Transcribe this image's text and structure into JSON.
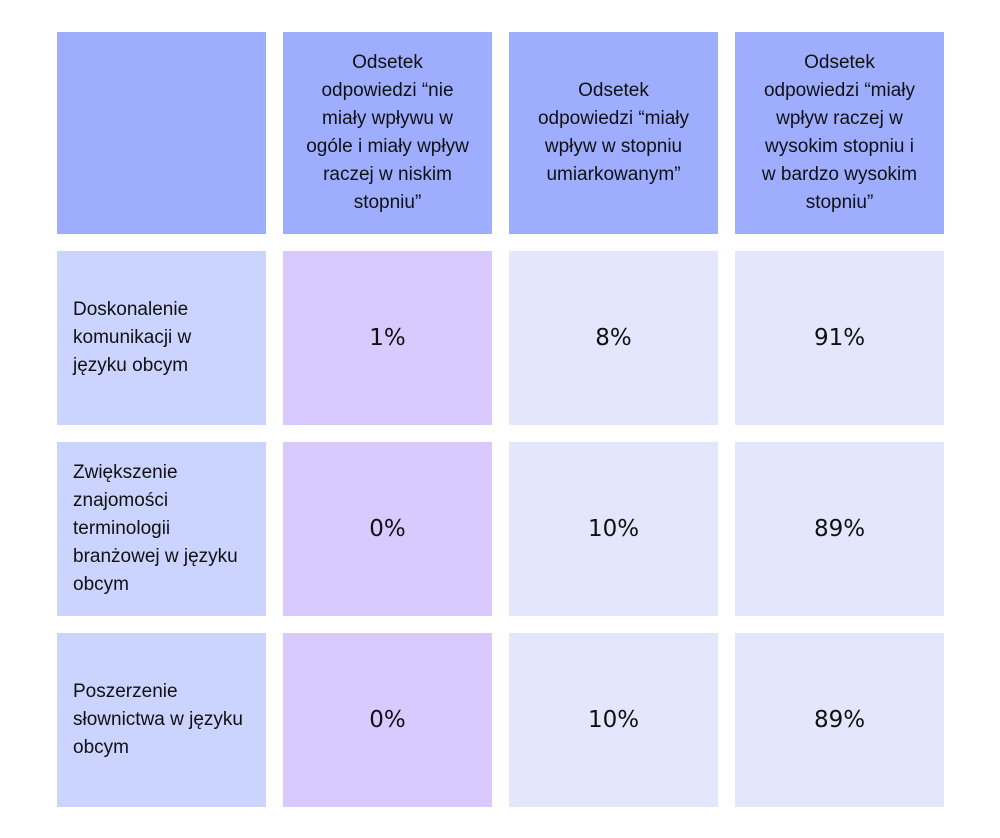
{
  "chart_data": {
    "type": "table",
    "columns": [
      "",
      "Odsetek\nodpowiedzi “nie\nmiały wpływu w\nogóle i miały wpływ\nraczej w niskim\nstopniu”",
      "Odsetek\nodpowiedzi “miały\nwpływ w stopniu\numiarkowanym”",
      "Odsetek\nodpowiedzi “miały\nwpływ raczej w\nwysokim stopniu i\nw bardzo wysokim\nstopniu”"
    ],
    "rows": [
      {
        "label": "Doskonalenie\nkomunikacji w\njęzyku obcym",
        "values": [
          "1%",
          "8%",
          "91%"
        ]
      },
      {
        "label": "Zwiększenie\nznajomości\nterminologii\nbranżowej w języku\nobcym",
        "values": [
          "0%",
          "10%",
          "89%"
        ]
      },
      {
        "label": "Poszerzenie\nsłownictwa w języku\nobcym",
        "values": [
          "0%",
          "10%",
          "89%"
        ]
      }
    ],
    "colors": {
      "header": "#9fadff",
      "row_label": "#cad4ff",
      "low_column": "#d8caff",
      "other_columns": "#e3e6fd"
    }
  }
}
